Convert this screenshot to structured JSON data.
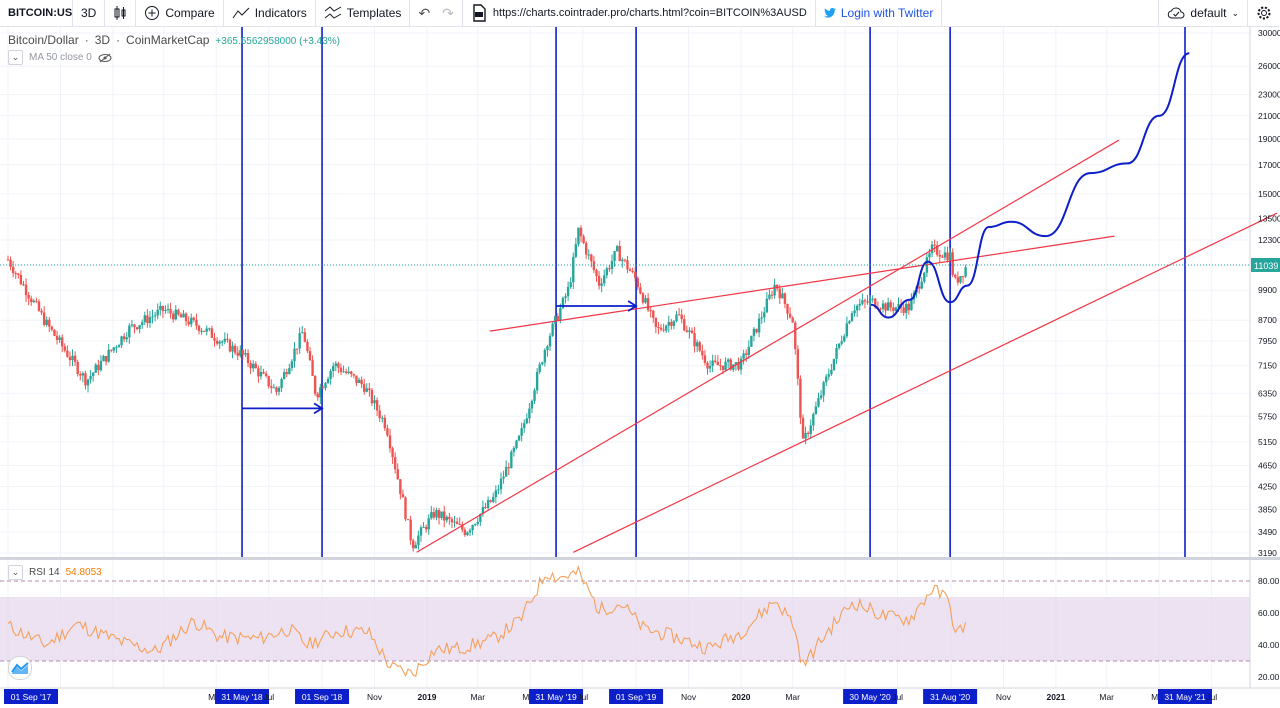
{
  "toolbar": {
    "symbol": "BITCOIN:USD",
    "interval": "3D",
    "compare": "Compare",
    "indicators": "Indicators",
    "templates": "Templates",
    "url": "https://charts.cointrader.pro/charts.html?coin=BITCOIN%3AUSD",
    "login": "Login with Twitter",
    "layout": "default"
  },
  "legend": {
    "pair": "Bitcoin/Dollar",
    "interval": "3D",
    "source": "CoinMarketCap",
    "change": "+365.6562958000 (+3.43%)",
    "ma": "MA 50 close 0",
    "rsi_name": "RSI 14",
    "rsi_value": "54.8053"
  },
  "colors": {
    "up": "#26a69a",
    "down": "#ef5350",
    "drawing_blue": "#0c1fc8",
    "trend_red": "#f23645",
    "rsi_line": "#f5a05a",
    "rsi_band": "#e5d8ee",
    "price_label": "#26a69a"
  },
  "chart_data": [
    {
      "type": "line",
      "title": "Bitcoin/Dollar · 3D · CoinMarketCap",
      "y_scale": "log",
      "ylim": [
        3100,
        31000
      ],
      "y_ticks": [
        "30000",
        "26000",
        "23000",
        "21000",
        "19000",
        "17000",
        "15000",
        "13500",
        "12300",
        "11039",
        "9900",
        "8700",
        "7950",
        "7150",
        "6350",
        "5750",
        "5150",
        "4650",
        "4250",
        "3850",
        "3490",
        "3190"
      ],
      "last_price": "11039",
      "x_labels": [
        "01 Sep '17",
        "May",
        "31 May '18",
        "Jul",
        "01 Sep '18",
        "Nov",
        "2019",
        "Mar",
        "May",
        "31 May '19",
        "Jul",
        "01 Sep '19",
        "Nov",
        "2020",
        "Mar",
        "Ma",
        "30 May '20",
        "Jul",
        "31 Aug '20",
        "Nov",
        "2021",
        "Mar",
        "May",
        "31 May '21",
        "Jul"
      ],
      "highlighted_dates": [
        "01 Sep '17",
        "31 May '18",
        "01 Sep '18",
        "31 May '19",
        "01 Sep '19",
        "30 May '20",
        "31 Aug '20",
        "31 May '21"
      ],
      "series": [
        {
          "values": [
            [
              "2017-09-01",
              11300
            ],
            [
              "2017-10-15",
              8600
            ],
            [
              "2017-12-01",
              6700
            ],
            [
              "2018-01-20",
              8400
            ],
            [
              "2018-03-01",
              9100
            ],
            [
              "2018-04-10",
              8500
            ],
            [
              "2018-05-31",
              7500
            ],
            [
              "2018-07-10",
              6400
            ],
            [
              "2018-08-10",
              8300
            ],
            [
              "2018-08-25",
              6300
            ],
            [
              "2018-09-15",
              7200
            ],
            [
              "2018-10-20",
              6550
            ],
            [
              "2018-11-15",
              5500
            ],
            [
              "2018-12-15",
              3300
            ],
            [
              "2019-01-10",
              3800
            ],
            [
              "2019-02-15",
              3500
            ],
            [
              "2019-03-20",
              4050
            ],
            [
              "2019-04-20",
              5300
            ],
            [
              "2019-05-20",
              7900
            ],
            [
              "2019-06-15",
              10000
            ],
            [
              "2019-06-26",
              12800
            ],
            [
              "2019-07-20",
              10200
            ],
            [
              "2019-08-10",
              11700
            ],
            [
              "2019-09-01",
              10350
            ],
            [
              "2019-09-25",
              8300
            ],
            [
              "2019-10-20",
              8900
            ],
            [
              "2019-11-25",
              7150
            ],
            [
              "2020-01-01",
              7200
            ],
            [
              "2020-02-10",
              10200
            ],
            [
              "2020-03-01",
              8700
            ],
            [
              "2020-03-13",
              5100
            ],
            [
              "2020-04-10",
              6800
            ],
            [
              "2020-05-10",
              9200
            ],
            [
              "2020-05-31",
              9450
            ],
            [
              "2020-06-20",
              9200
            ],
            [
              "2020-07-15",
              9200
            ],
            [
              "2020-08-10",
              11800
            ],
            [
              "2020-08-31",
              11500
            ],
            [
              "2020-09-05",
              10200
            ],
            [
              "2020-09-20",
              11039
            ]
          ]
        }
      ]
    },
    {
      "type": "line",
      "title": "RSI 14",
      "ylim": [
        15,
        95
      ],
      "y_ticks": [
        "80.00",
        "60.00",
        "40.00",
        "20.00"
      ],
      "band": [
        30,
        70
      ],
      "series": [
        {
          "name": "RSI 14",
          "values": [
            [
              "2017-09-01",
              52
            ],
            [
              "2017-10-15",
              40
            ],
            [
              "2017-11-20",
              53
            ],
            [
              "2018-01-10",
              42
            ],
            [
              "2018-02-20",
              36
            ],
            [
              "2018-04-05",
              55
            ],
            [
              "2018-05-05",
              45
            ],
            [
              "2018-06-20",
              44
            ],
            [
              "2018-07-25",
              50
            ],
            [
              "2018-08-15",
              40
            ],
            [
              "2018-09-20",
              49
            ],
            [
              "2018-10-25",
              48
            ],
            [
              "2018-11-20",
              26
            ],
            [
              "2018-12-15",
              22
            ],
            [
              "2019-01-10",
              37
            ],
            [
              "2019-02-10",
              38
            ],
            [
              "2019-03-20",
              44
            ],
            [
              "2019-04-20",
              56
            ],
            [
              "2019-05-20",
              86
            ],
            [
              "2019-06-01",
              82
            ],
            [
              "2019-06-26",
              85
            ],
            [
              "2019-07-20",
              62
            ],
            [
              "2019-08-15",
              66
            ],
            [
              "2019-09-10",
              50
            ],
            [
              "2019-10-10",
              46
            ],
            [
              "2019-11-25",
              38
            ],
            [
              "2020-01-01",
              48
            ],
            [
              "2020-02-10",
              68
            ],
            [
              "2020-03-01",
              54
            ],
            [
              "2020-03-13",
              27
            ],
            [
              "2020-04-10",
              48
            ],
            [
              "2020-05-10",
              67
            ],
            [
              "2020-06-15",
              58
            ],
            [
              "2020-07-15",
              56
            ],
            [
              "2020-08-10",
              75
            ],
            [
              "2020-08-31",
              68
            ],
            [
              "2020-09-05",
              45
            ],
            [
              "2020-09-20",
              54.8
            ]
          ]
        }
      ]
    }
  ]
}
